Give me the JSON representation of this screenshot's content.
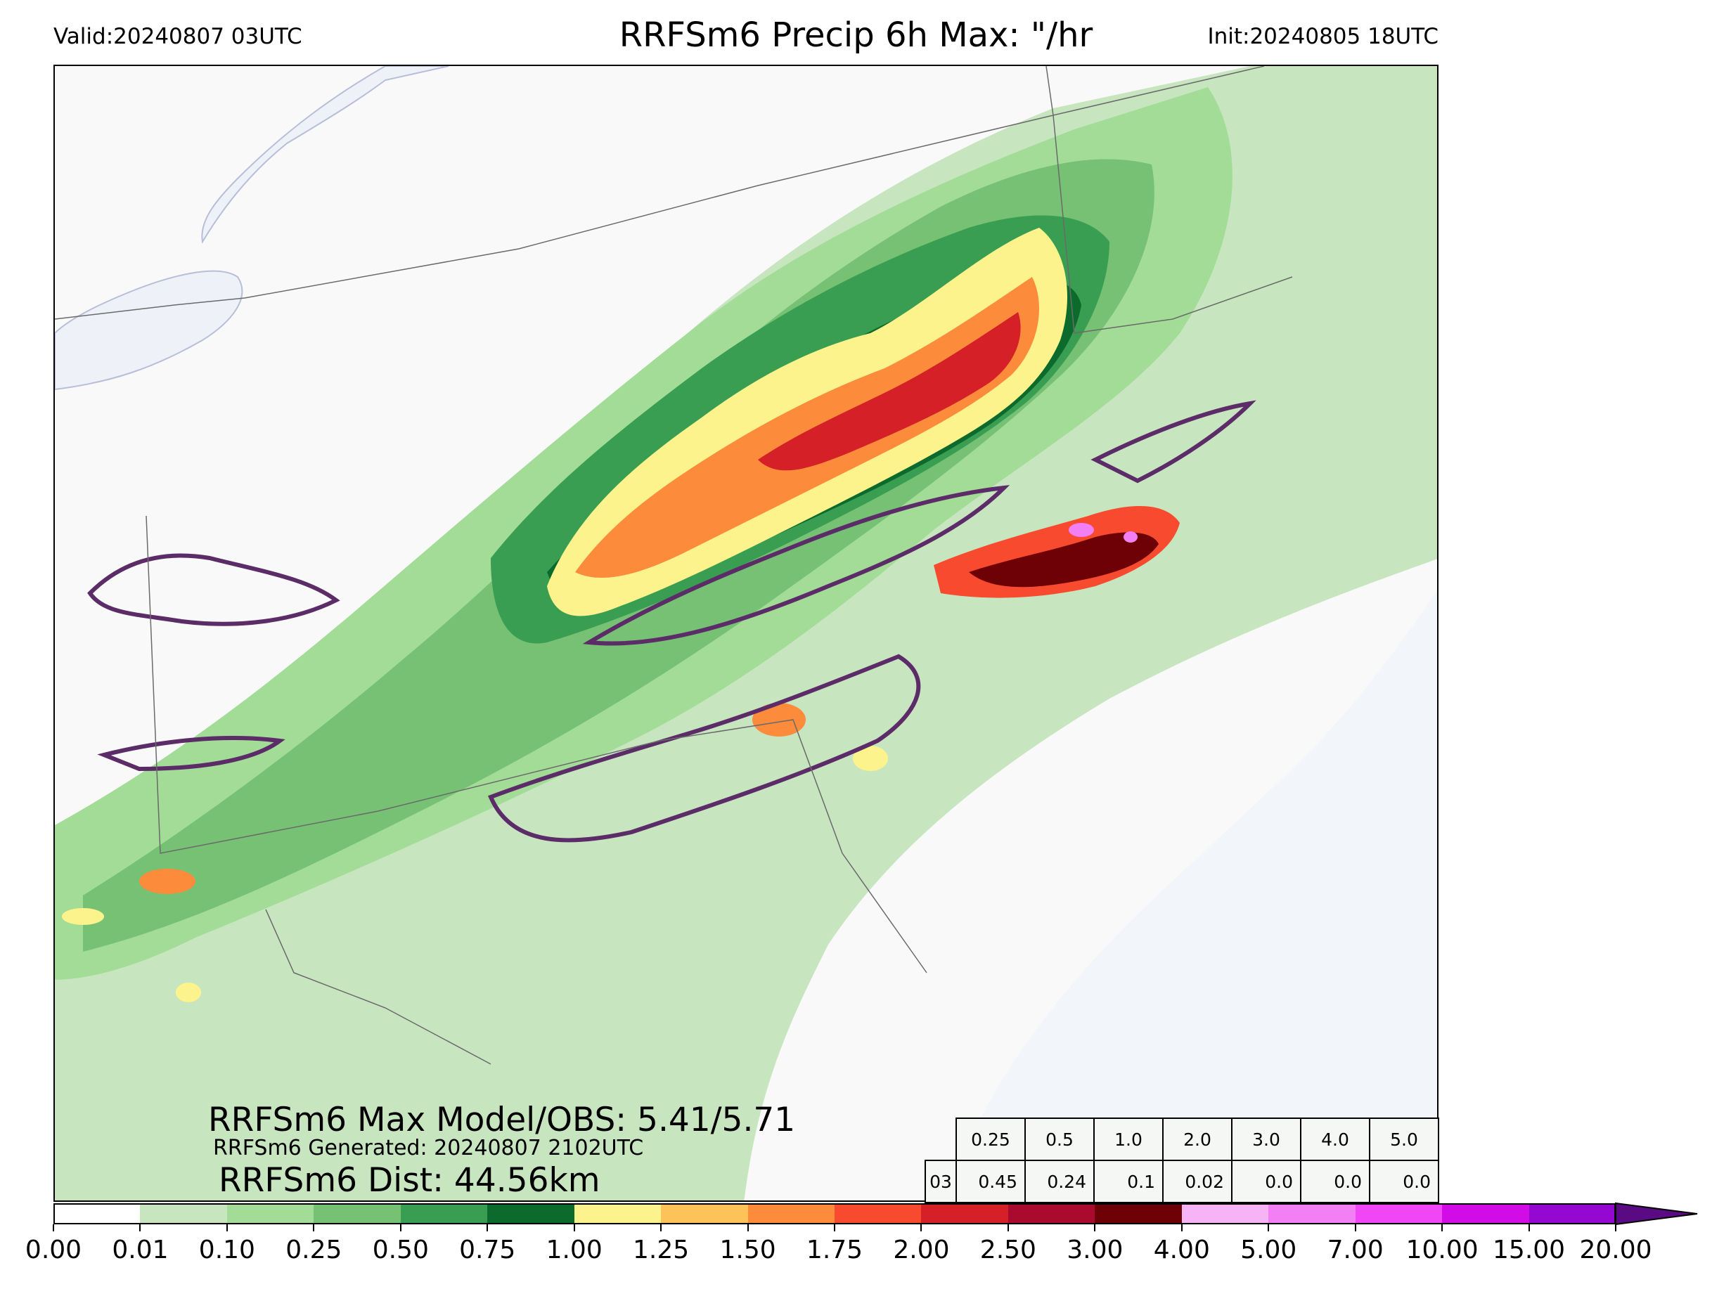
{
  "header": {
    "valid": "Valid:20240807 03UTC",
    "title": "RRFSm6 Precip 6h Max: \"/hr",
    "init": "Init:20240805 18UTC"
  },
  "stats": {
    "max_line": "RRFSm6 Max Model/OBS: 5.41/5.71",
    "generated_line": "RRFSm6 Generated: 20240807 2102UTC",
    "dist_line": "RRFSm6 Dist: 44.56km"
  },
  "threshold_table": {
    "headers": [
      "0.25",
      "0.5",
      "1.0",
      "2.0",
      "3.0",
      "4.0",
      "5.0"
    ],
    "row_label": "03",
    "values": [
      "0.45",
      "0.24",
      "0.1",
      "0.02",
      "0.0",
      "0.0",
      "0.0"
    ]
  },
  "colorbar": {
    "levels": [
      "0.00",
      "0.01",
      "0.10",
      "0.25",
      "0.50",
      "0.75",
      "1.00",
      "1.25",
      "1.50",
      "1.75",
      "2.00",
      "2.50",
      "3.00",
      "4.00",
      "5.00",
      "7.00",
      "10.00",
      "15.00",
      "20.00"
    ],
    "colors": [
      "#ffffff",
      "#c7e6c0",
      "#a2dc96",
      "#76c174",
      "#3a9e52",
      "#0c6b2c",
      "#fdf38c",
      "#fdc358",
      "#fc8c3c",
      "#f84a2e",
      "#d42026",
      "#a90a2d",
      "#6e0106",
      "#f6b4f6",
      "#f27ff4",
      "#f046f6",
      "#d20ce6",
      "#9508d2"
    ],
    "extend_color": "#5a0a82"
  },
  "map_colors": {
    "background": "#f9f9f9",
    "water": "#eef2f8",
    "contour": "#5c2c68",
    "borders": "#6a6a6a"
  }
}
